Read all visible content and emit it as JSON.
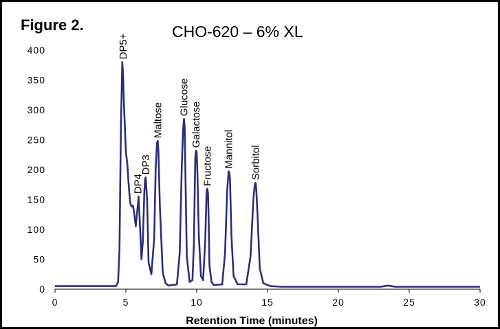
{
  "figure_label": "Figure 2.",
  "chart_data": {
    "type": "line",
    "title": "CHO-620 – 6% XL",
    "xlabel": "Retention Time (minutes)",
    "ylabel": "",
    "xlim": [
      0,
      30
    ],
    "ylim": [
      0,
      400
    ],
    "xticks": [
      0,
      5,
      10,
      15,
      20,
      25,
      30
    ],
    "yticks": [
      0,
      50,
      100,
      150,
      200,
      250,
      300,
      350,
      400
    ],
    "grid": false,
    "series_color": "#2b2f7a",
    "series": [
      {
        "x": [
          0,
          4.3,
          4.45,
          4.55,
          4.65,
          4.75,
          4.8,
          4.85,
          4.9,
          4.95,
          5.0,
          5.1,
          5.2,
          5.3,
          5.4,
          5.5,
          5.6,
          5.7,
          5.8,
          5.9,
          6.0,
          6.1,
          6.2,
          6.3,
          6.35,
          6.4,
          6.5,
          6.6,
          6.8,
          7.0,
          7.1,
          7.2,
          7.25,
          7.3,
          7.4,
          7.6,
          7.8,
          8.0,
          8.6,
          8.8,
          8.95,
          9.05,
          9.1,
          9.15,
          9.2,
          9.3,
          9.5,
          9.7,
          9.8,
          9.9,
          9.95,
          10.0,
          10.05,
          10.15,
          10.3,
          10.45,
          10.6,
          10.7,
          10.75,
          10.8,
          10.85,
          10.9,
          11.05,
          11.2,
          11.8,
          12.0,
          12.15,
          12.25,
          12.3,
          12.35,
          12.45,
          12.6,
          12.9,
          13.5,
          13.8,
          14.0,
          14.1,
          14.15,
          14.2,
          14.3,
          14.45,
          14.7,
          15.2,
          16.0,
          23.0,
          23.5,
          24.0,
          30.0
        ],
        "values": [
          5,
          5,
          12,
          65,
          270,
          380,
          360,
          320,
          290,
          260,
          230,
          210,
          175,
          145,
          138,
          140,
          125,
          105,
          130,
          155,
          105,
          50,
          80,
          160,
          183,
          187,
          150,
          45,
          25,
          85,
          200,
          245,
          248,
          230,
          140,
          28,
          10,
          6,
          8,
          60,
          210,
          270,
          285,
          272,
          200,
          55,
          12,
          15,
          75,
          220,
          232,
          230,
          195,
          90,
          22,
          15,
          80,
          165,
          168,
          160,
          110,
          40,
          12,
          7,
          8,
          60,
          165,
          197,
          195,
          185,
          90,
          22,
          8,
          8,
          55,
          150,
          175,
          178,
          170,
          120,
          35,
          10,
          5,
          4,
          4,
          6,
          4,
          4
        ]
      }
    ],
    "peak_labels": [
      {
        "label": "DP5+",
        "x": 4.8,
        "y": 380
      },
      {
        "label": "DP4",
        "x": 5.85,
        "y": 155
      },
      {
        "label": "DP3",
        "x": 6.4,
        "y": 187
      },
      {
        "label": "Maltose",
        "x": 7.25,
        "y": 248
      },
      {
        "label": "Glucose",
        "x": 9.1,
        "y": 285
      },
      {
        "label": "Galactose",
        "x": 9.95,
        "y": 232
      },
      {
        "label": "Fructose",
        "x": 10.75,
        "y": 168
      },
      {
        "label": "Mannitol",
        "x": 12.25,
        "y": 197
      },
      {
        "label": "Sorbitol",
        "x": 14.15,
        "y": 178
      }
    ]
  }
}
